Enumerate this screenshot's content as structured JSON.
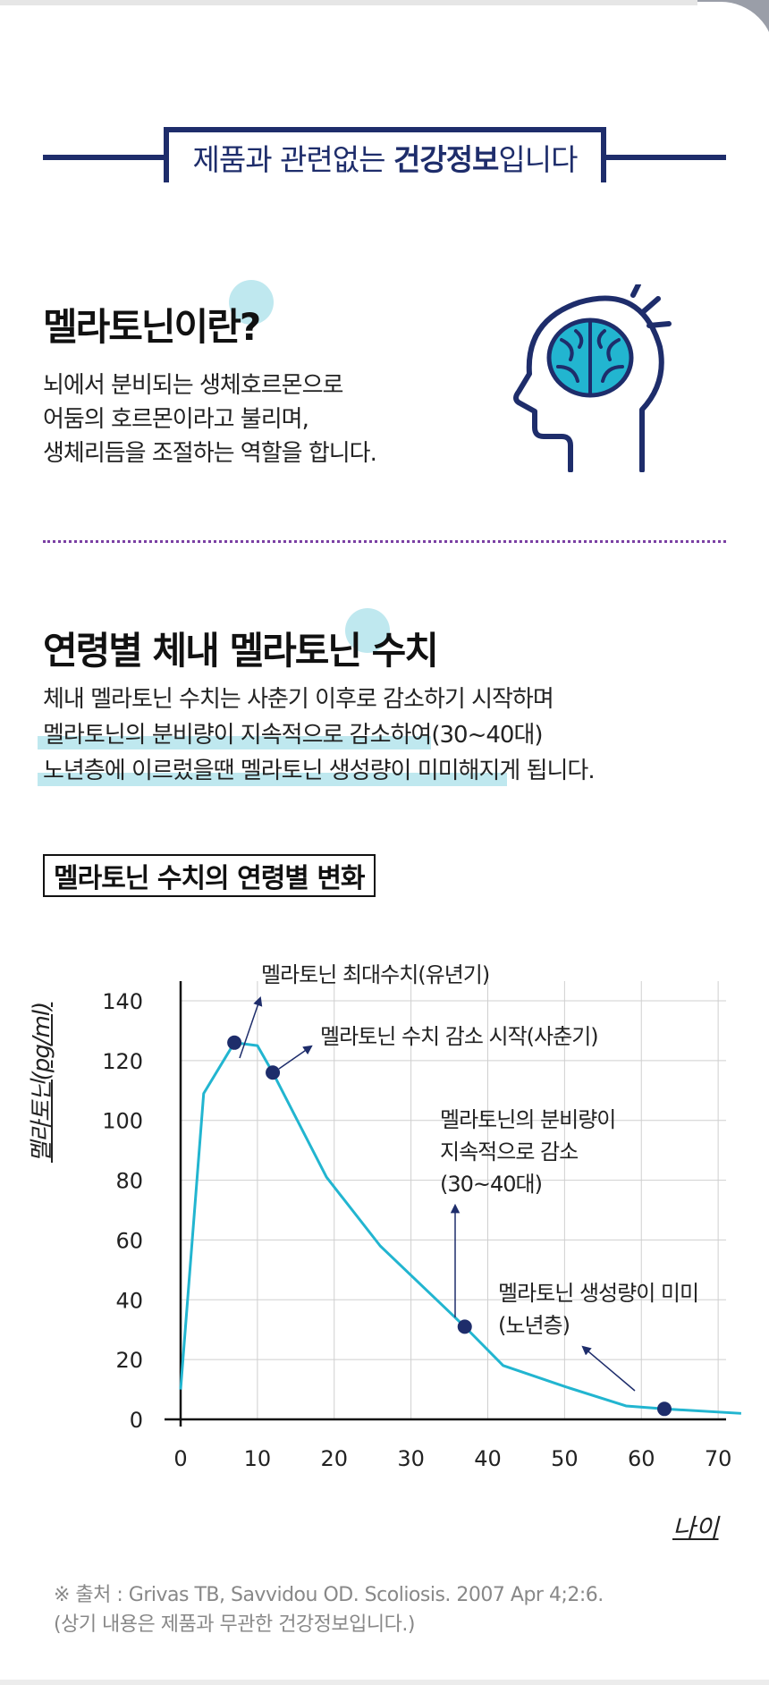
{
  "banner": {
    "text_prefix": "제품과 관련없는 ",
    "text_bold": "건강정보",
    "text_suffix": "입니다"
  },
  "section1": {
    "title": "멜라토닌이란?",
    "desc_lines": [
      "뇌에서 분비되는 생체호르몬으로",
      "어둠의 호르몬이라고 불리며,",
      "생체리듬을 조절하는 역할을 합니다."
    ],
    "icon": "head-brain-icon"
  },
  "section2": {
    "title": "연령별 체내 멜라토닌 수치",
    "desc_lines": [
      "체내 멜라토닌 수치는 사춘기 이후로 감소하기 시작하며",
      "멜라토닌의 분비량이 지속적으로 감소하여(30~40대)",
      "노년층에 이르렀을땐 멜라토닌 생성량이 미미해지게 됩니다."
    ]
  },
  "chart_title": "멜라토닌 수치의 연령별 변화",
  "colors": {
    "navy": "#1e2d6b",
    "line": "#22b5d0",
    "highlight": "#bfe8ef",
    "grid": "#cfcfcf"
  },
  "chart_data": {
    "type": "line",
    "title": "멜라토닌 수치의 연령별 변화",
    "xlabel": "나이",
    "ylabel": "멜라토닌(pg/ml)",
    "xlim": [
      0,
      73
    ],
    "ylim": [
      0,
      140
    ],
    "x_ticks": [
      0,
      10,
      20,
      30,
      40,
      50,
      60,
      70
    ],
    "y_ticks": [
      0,
      20,
      40,
      60,
      80,
      100,
      120,
      140
    ],
    "grid": true,
    "series": [
      {
        "x": [
          0,
          3,
          7,
          10,
          12,
          19,
          26,
          37,
          42,
          50,
          58,
          63,
          73
        ],
        "y": [
          10,
          109,
          126,
          125,
          116,
          81,
          58,
          31,
          18,
          11,
          4.5,
          3.5,
          2
        ]
      }
    ],
    "highlight_points": [
      {
        "x": 7,
        "y": 126
      },
      {
        "x": 12,
        "y": 116
      },
      {
        "x": 37,
        "y": 31
      },
      {
        "x": 63,
        "y": 3.5
      }
    ],
    "annotations": [
      {
        "lines": [
          "멜라토닌 최대수치(유년기)"
        ],
        "point_index": 0
      },
      {
        "lines": [
          "멜라토닌 수치 감소 시작(사춘기)"
        ],
        "point_index": 1
      },
      {
        "lines": [
          "멜라토닌의 분비량이",
          "지속적으로 감소",
          "(30~40대)"
        ],
        "point_index": 2
      },
      {
        "lines": [
          "멜라토닌 생성량이 미미",
          "(노년층)"
        ],
        "point_index": 3
      }
    ]
  },
  "source": {
    "line1": "※ 출처 : Grivas TB, Savvidou OD. Scoliosis. 2007 Apr 4;2:6.",
    "line2": "(상기 내용은 제품과 무관한 건강정보입니다.)"
  }
}
